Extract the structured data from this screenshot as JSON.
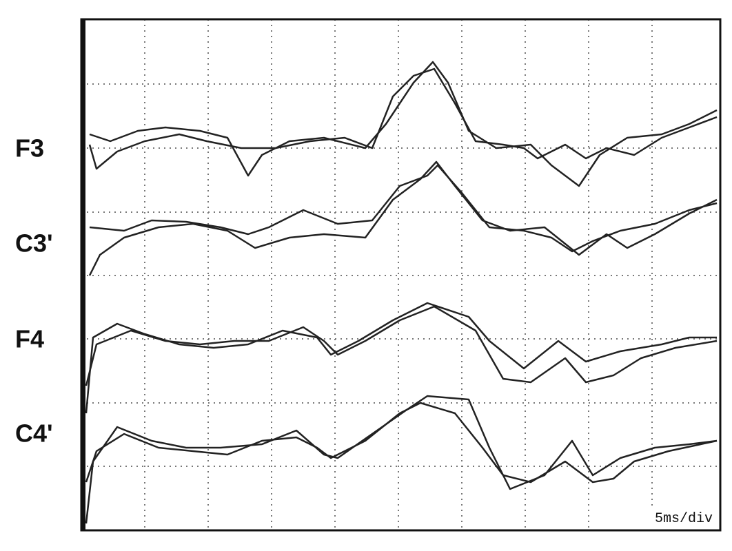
{
  "channels": [
    "F3",
    "C3'",
    "F4",
    "C4'"
  ],
  "scale_label": "5ms/div"
}
